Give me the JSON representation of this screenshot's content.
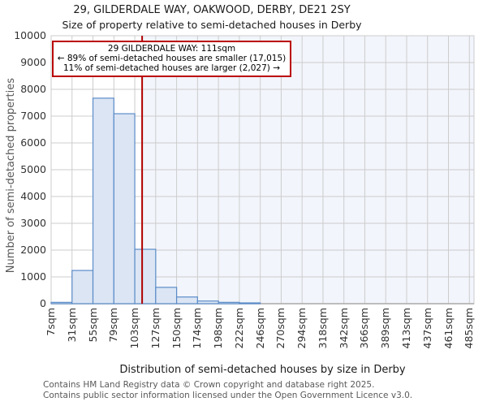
{
  "title": "29, GILDERDALE WAY, OAKWOOD, DERBY, DE21 2SY",
  "subtitle": "Size of property relative to semi-detached houses in Derby",
  "annotation": {
    "line1": "29 GILDERDALE WAY: 111sqm",
    "line2": "← 89% of semi-detached houses are smaller (17,015)",
    "line3": "11% of semi-detached houses are larger (2,027) →"
  },
  "footer": {
    "line1": "Contains HM Land Registry data © Crown copyright and database right 2025.",
    "line2": "Contains public sector information licensed under the Open Government Licence v3.0."
  },
  "chart_data": {
    "type": "bar",
    "title": "29, GILDERDALE WAY, OAKWOOD, DERBY, DE21 2SY — Size of property relative to semi-detached houses in Derby",
    "xlabel": "Distribution of semi-detached houses by size in Derby",
    "ylabel": "Number of semi-detached properties",
    "ylim": [
      0,
      10000
    ],
    "ytick_step": 1000,
    "ytick_labels": [
      "0",
      "1000",
      "2000",
      "3000",
      "4000",
      "5000",
      "6000",
      "7000",
      "8000",
      "9000",
      "10000"
    ],
    "grid": true,
    "bins": {
      "start": 7,
      "width": 23.9,
      "count": 20
    },
    "xtick_labels": [
      "7sqm",
      "31sqm",
      "55sqm",
      "79sqm",
      "103sqm",
      "127sqm",
      "150sqm",
      "174sqm",
      "198sqm",
      "222sqm",
      "246sqm",
      "270sqm",
      "294sqm",
      "318sqm",
      "342sqm",
      "366sqm",
      "389sqm",
      "413sqm",
      "437sqm",
      "461sqm",
      "485sqm"
    ],
    "values": [
      50,
      1240,
      7670,
      7090,
      2030,
      610,
      250,
      100,
      50,
      30,
      0,
      0,
      0,
      0,
      0,
      0,
      0,
      0,
      0,
      0
    ],
    "marker": {
      "value_sqm": 111,
      "label": "29 GILDERDALE WAY: 111sqm",
      "percent_smaller": 89,
      "count_smaller": "17,015",
      "percent_larger": 11,
      "count_larger": "2,027"
    },
    "colors": {
      "bar_fill": "#dbe5f4",
      "bar_edge": "#5b8cc8",
      "marker_line": "#b00000",
      "annotation_border": "#bb0000",
      "shade_right_of_marker": "#f2f5fb",
      "grid": "#cccccc",
      "spine": "#aaaaaa"
    }
  }
}
